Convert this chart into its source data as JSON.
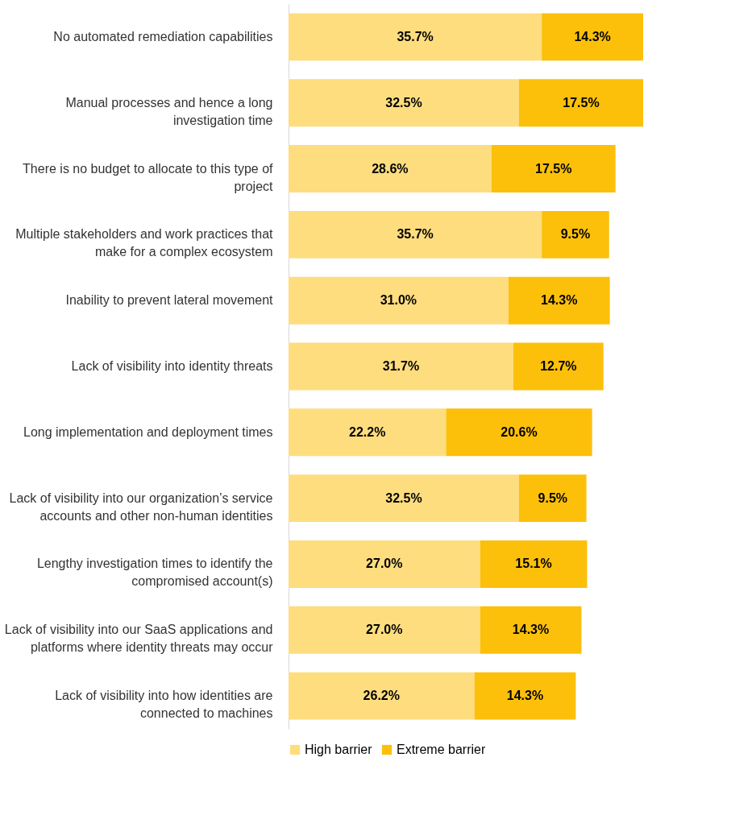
{
  "chart_data": {
    "type": "bar",
    "orientation": "horizontal",
    "stacked": true,
    "legend": "bottom",
    "categories": [
      "No automated remediation capabilities",
      "Manual processes and hence a long\ninvestigation time",
      "There is no budget to allocate to this type of\nproject",
      "Multiple stakeholders and work practices that\nmake for a complex ecosystem",
      "Inability to prevent lateral movement",
      "Lack of visibility into identity threats",
      "Long implementation and deployment times",
      "Lack of visibility into our organization’s service\naccounts and other non-human identities",
      "Lengthy investigation times to identify the\ncompromised account(s)",
      "Lack of visibility into our SaaS applications and\nplatforms where identity threats may occur",
      "Lack of visibility into how identities are\nconnected to machines"
    ],
    "series": [
      {
        "name": "High barrier",
        "color": "#fedd7f",
        "values": [
          35.7,
          32.5,
          28.6,
          35.7,
          31.0,
          31.7,
          22.2,
          32.5,
          27.0,
          27.0,
          26.2
        ],
        "value_labels": [
          "35.7%",
          "32.5%",
          "28.6%",
          "35.7%",
          "31.0%",
          "31.7%",
          "22.2%",
          "32.5%",
          "27.0%",
          "27.0%",
          "26.2%"
        ]
      },
      {
        "name": "Extreme barrier",
        "color": "#fcc00b",
        "values": [
          14.3,
          17.5,
          17.5,
          9.5,
          14.3,
          12.7,
          20.6,
          9.5,
          15.1,
          14.3,
          14.3
        ],
        "value_labels": [
          "14.3%",
          "17.5%",
          "17.5%",
          "9.5%",
          "14.3%",
          "12.7%",
          "20.6%",
          "9.5%",
          "15.1%",
          "14.3%",
          "14.3%"
        ]
      }
    ]
  }
}
